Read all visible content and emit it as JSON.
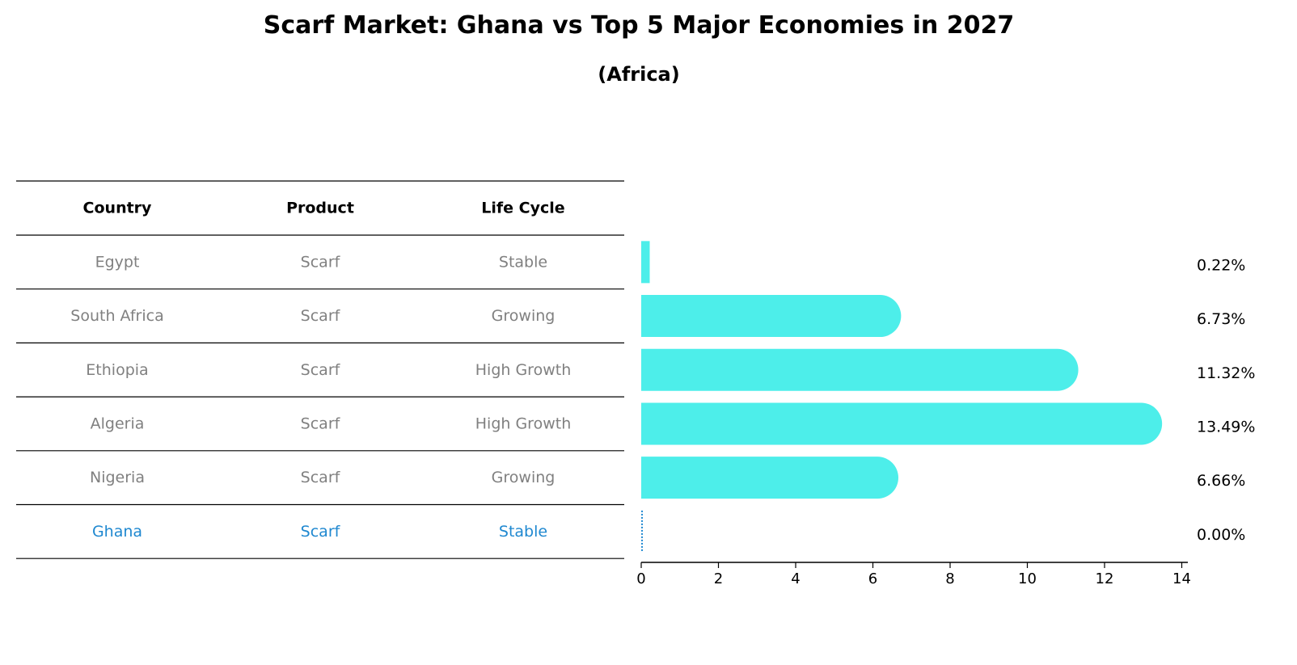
{
  "title": "Scarf Market: Ghana vs Top 5 Major Economies in 2027",
  "subtitle": "(Africa)",
  "table": {
    "headers": [
      "Country",
      "Product",
      "Life Cycle"
    ],
    "rows": [
      {
        "country": "Egypt",
        "product": "Scarf",
        "life_cycle": "Stable",
        "highlight": false
      },
      {
        "country": "South Africa",
        "product": "Scarf",
        "life_cycle": "Growing",
        "highlight": false
      },
      {
        "country": "Ethiopia",
        "product": "Scarf",
        "life_cycle": "High Growth",
        "highlight": false
      },
      {
        "country": "Algeria",
        "product": "Scarf",
        "life_cycle": "High Growth",
        "highlight": false
      },
      {
        "country": "Nigeria",
        "product": "Scarf",
        "life_cycle": "Growing",
        "highlight": false
      },
      {
        "country": "Ghana",
        "product": "Scarf",
        "life_cycle": "Stable",
        "highlight": true
      }
    ]
  },
  "chart_data": {
    "type": "bar",
    "orientation": "horizontal",
    "categories": [
      "Egypt",
      "South Africa",
      "Ethiopia",
      "Algeria",
      "Nigeria",
      "Ghana"
    ],
    "values": [
      0.22,
      6.73,
      11.32,
      13.49,
      6.66,
      0.0
    ],
    "value_labels": [
      "0.22%",
      "6.73%",
      "11.32%",
      "13.49%",
      "6.66%",
      "0.00%"
    ],
    "xlim": [
      0,
      14.1
    ],
    "xticks": [
      0,
      2,
      4,
      6,
      8,
      10,
      12,
      14
    ],
    "bar_color": "#4deeea",
    "highlight_color": "#1f88d0",
    "grid": false
  }
}
